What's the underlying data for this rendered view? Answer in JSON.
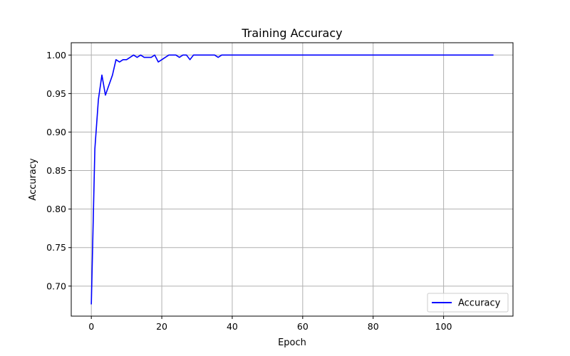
{
  "chart_data": {
    "type": "line",
    "title": "Training Accuracy",
    "xlabel": "Epoch",
    "ylabel": "Accuracy",
    "xlim": [
      -5.7,
      119.7
    ],
    "ylim": [
      0.661,
      1.016
    ],
    "xticks": [
      0,
      20,
      40,
      60,
      80,
      100
    ],
    "xtick_labels": [
      "0",
      "20",
      "40",
      "60",
      "80",
      "100"
    ],
    "yticks": [
      0.7,
      0.75,
      0.8,
      0.85,
      0.9,
      0.95,
      1.0
    ],
    "ytick_labels": [
      "0.70",
      "0.75",
      "0.80",
      "0.85",
      "0.90",
      "0.95",
      "1.00"
    ],
    "grid": true,
    "legend_position": "lower-right",
    "series": [
      {
        "name": "Accuracy",
        "color": "#0000ff",
        "x": [
          0,
          1,
          2,
          3,
          4,
          5,
          6,
          7,
          8,
          9,
          10,
          11,
          12,
          13,
          14,
          15,
          16,
          17,
          18,
          19,
          20,
          21,
          22,
          23,
          24,
          25,
          26,
          27,
          28,
          29,
          30,
          31,
          32,
          33,
          34,
          35,
          36,
          37,
          38,
          39,
          40,
          41,
          42,
          43,
          44,
          45,
          46,
          47,
          48,
          49,
          50,
          51,
          52,
          53,
          54,
          55,
          56,
          57,
          58,
          59,
          60,
          61,
          62,
          63,
          64,
          65,
          66,
          67,
          68,
          69,
          70,
          71,
          72,
          73,
          74,
          75,
          76,
          77,
          78,
          79,
          80,
          81,
          82,
          83,
          84,
          85,
          86,
          87,
          88,
          89,
          90,
          91,
          92,
          93,
          94,
          95,
          96,
          97,
          98,
          99,
          100,
          101,
          102,
          103,
          104,
          105,
          106,
          107,
          108,
          109,
          110,
          111,
          112,
          113,
          114
        ],
        "values": [
          0.677,
          0.878,
          0.942,
          0.974,
          0.948,
          0.961,
          0.974,
          0.994,
          0.991,
          0.994,
          0.994,
          0.997,
          1.0,
          0.997,
          1.0,
          0.997,
          0.997,
          0.997,
          1.0,
          0.991,
          0.994,
          0.997,
          1.0,
          1.0,
          1.0,
          0.997,
          1.0,
          1.0,
          0.994,
          1.0,
          1.0,
          1.0,
          1.0,
          1.0,
          1.0,
          1.0,
          0.997,
          1.0,
          1.0,
          1.0,
          1.0,
          1.0,
          1.0,
          1.0,
          1.0,
          1.0,
          1.0,
          1.0,
          1.0,
          1.0,
          1.0,
          1.0,
          1.0,
          1.0,
          1.0,
          1.0,
          1.0,
          1.0,
          1.0,
          1.0,
          1.0,
          1.0,
          1.0,
          1.0,
          1.0,
          1.0,
          1.0,
          1.0,
          1.0,
          1.0,
          1.0,
          1.0,
          1.0,
          1.0,
          1.0,
          1.0,
          1.0,
          1.0,
          1.0,
          1.0,
          1.0,
          1.0,
          1.0,
          1.0,
          1.0,
          1.0,
          1.0,
          1.0,
          1.0,
          1.0,
          1.0,
          1.0,
          1.0,
          1.0,
          1.0,
          1.0,
          1.0,
          1.0,
          1.0,
          1.0,
          1.0,
          1.0,
          1.0,
          1.0,
          1.0,
          1.0,
          1.0,
          1.0,
          1.0,
          1.0,
          1.0,
          1.0,
          1.0,
          1.0,
          1.0
        ]
      }
    ]
  }
}
